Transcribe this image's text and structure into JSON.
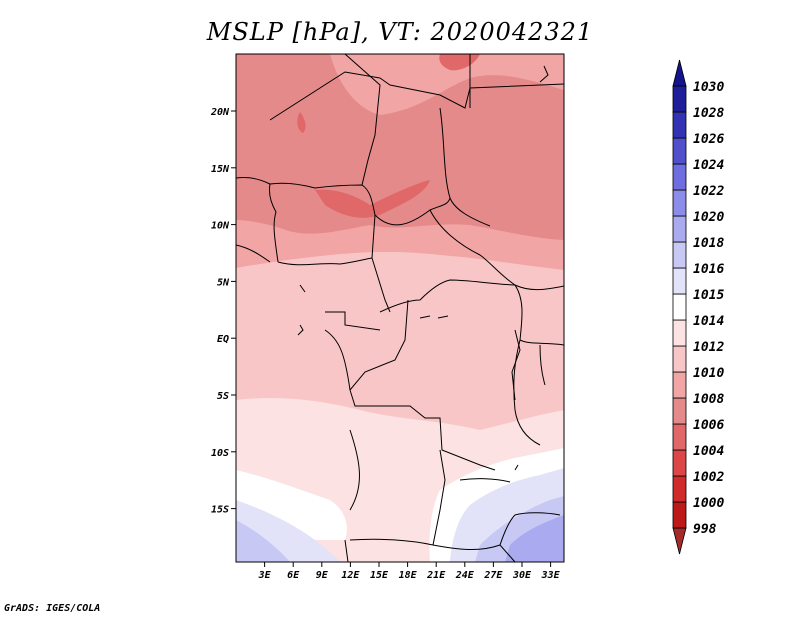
{
  "title": "MSLP [hPa], VT: 2020042321",
  "credit": "GrADS: IGES/COLA",
  "map": {
    "lon_labels": [
      "3E",
      "6E",
      "9E",
      "12E",
      "15E",
      "18E",
      "21E",
      "24E",
      "27E",
      "30E",
      "33E"
    ],
    "lat_labels": [
      "20N",
      "15N",
      "10N",
      "5N",
      "EQ",
      "5S",
      "10S",
      "15S"
    ]
  },
  "colorbar": {
    "levels": [
      {
        "label": "998",
        "color": "#a50f0f"
      },
      {
        "label": "1000",
        "color": "#be1919"
      },
      {
        "label": "1002",
        "color": "#d12a2a"
      },
      {
        "label": "1004",
        "color": "#dc4646"
      },
      {
        "label": "1006",
        "color": "#e06868"
      },
      {
        "label": "1008",
        "color": "#e58a8a"
      },
      {
        "label": "1010",
        "color": "#f1a5a5"
      },
      {
        "label": "1012",
        "color": "#f8c6c6"
      },
      {
        "label": "1014",
        "color": "#fce2e2"
      },
      {
        "label": "1015",
        "color": "#ffffff"
      },
      {
        "label": "1016",
        "color": "#e2e2f8"
      },
      {
        "label": "1018",
        "color": "#c8c8f4"
      },
      {
        "label": "1020",
        "color": "#aaaaf0"
      },
      {
        "label": "1022",
        "color": "#8c8ceb"
      },
      {
        "label": "1024",
        "color": "#6e6ee0"
      },
      {
        "label": "1026",
        "color": "#5050cd"
      },
      {
        "label": "1028",
        "color": "#3232b4"
      },
      {
        "label": "1030",
        "color": "#1e1e9b"
      }
    ],
    "top_label": "1030",
    "low_end_color": "#a52a2a",
    "high_end_color": "#14148c"
  }
}
